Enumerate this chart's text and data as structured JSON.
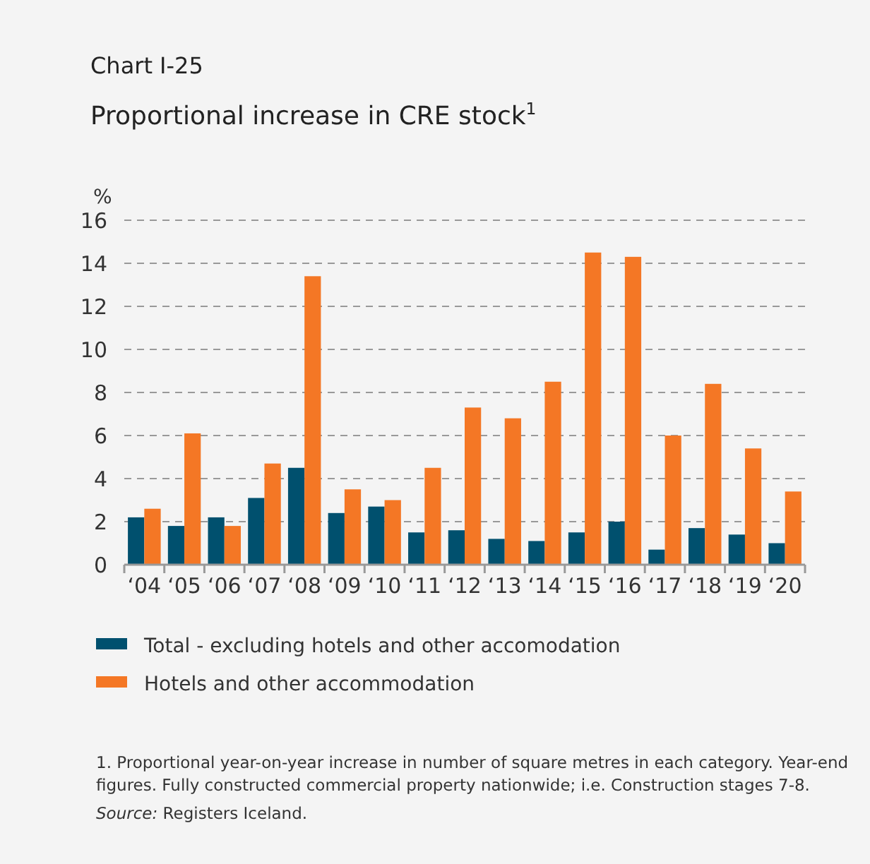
{
  "chart_data": {
    "type": "bar",
    "title": "Chart I-25",
    "subtitle": "Proportional increase in CRE stock$^{1}$",
    "ylabel": "%",
    "categories": [
      "‘04",
      "‘05",
      "‘06",
      "‘07",
      "‘08",
      "‘09",
      "‘10",
      "‘11",
      "‘12",
      "‘13",
      "‘14",
      "‘15",
      "‘16",
      "‘17",
      "‘18",
      "‘19",
      "‘20"
    ],
    "series": [
      {
        "name": "Total - excluding hotels and other accomodation",
        "color": "#00506e",
        "values": [
          2.2,
          1.8,
          2.2,
          3.1,
          4.5,
          2.4,
          2.7,
          1.5,
          1.6,
          1.2,
          1.1,
          1.5,
          2.0,
          0.7,
          1.7,
          1.4,
          1.0
        ]
      },
      {
        "name": "Hotels and other accommodation",
        "color": "#f47725",
        "values": [
          2.6,
          6.1,
          1.8,
          4.7,
          13.4,
          3.5,
          3.0,
          4.5,
          7.3,
          6.8,
          8.5,
          14.5,
          14.3,
          6.0,
          8.4,
          5.4,
          3.4
        ]
      }
    ],
    "ylim": [
      0,
      16
    ],
    "yticks": [
      0,
      2,
      4,
      6,
      8,
      10,
      12,
      14,
      16
    ],
    "grid": "y",
    "legend": "bottom",
    "annotations": [
      "1. Proportional year-on-year increase in number of square metres in each category. Year-end figures. Fully constructed commercial property nationwide; i.e. Construction stages 7-8.",
      "Source: Registers Iceland."
    ]
  }
}
